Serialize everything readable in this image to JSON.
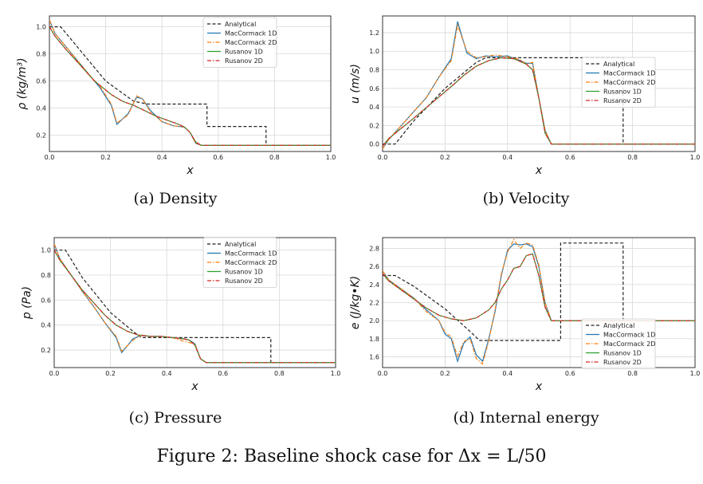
{
  "figure_caption": "Figure 2: Baseline shock case for Δx = L/50",
  "colors": {
    "analytical": "#222222",
    "maccormack_1d": "#1f77b4",
    "maccormack_2d": "#ff7f0e",
    "rusanov_1d": "#2ca02c",
    "rusanov_2d": "#d62728",
    "grid": "#d9d9d9"
  },
  "chart_data": [
    {
      "id": "density",
      "type": "line",
      "caption": "(a) Density",
      "xlabel": "x",
      "ylabel": "ρ (kg/m³)",
      "xlim": [
        0,
        1.0
      ],
      "ylim": [
        0.08,
        1.08
      ],
      "xticks": [
        "0.0",
        "0.2",
        "0.4",
        "0.6",
        "0.8",
        "1.0"
      ],
      "yticks": [
        "0.2",
        "0.4",
        "0.6",
        "0.8",
        "1.0"
      ],
      "xtick_values": [
        0,
        0.2,
        0.4,
        0.6,
        0.8,
        1.0
      ],
      "ytick_values": [
        0.2,
        0.4,
        0.6,
        0.8,
        1.0
      ],
      "grid": true,
      "legend_position": "top-right",
      "series": [
        {
          "name": "Analytical",
          "style": "dashed",
          "x": [
            0,
            0.04,
            0.1,
            0.2,
            0.3,
            0.35,
            0.56,
            0.56,
            0.77,
            0.77,
            1.0
          ],
          "y": [
            1.0,
            1.0,
            0.85,
            0.6,
            0.45,
            0.43,
            0.43,
            0.265,
            0.265,
            0.125,
            0.125
          ]
        },
        {
          "name": "MacCormack 1D",
          "style": "solid",
          "x": [
            0,
            0.02,
            0.06,
            0.1,
            0.14,
            0.18,
            0.22,
            0.24,
            0.28,
            0.31,
            0.33,
            0.36,
            0.4,
            0.44,
            0.48,
            0.5,
            0.52,
            0.54,
            0.6,
            1.0
          ],
          "y": [
            1.05,
            0.95,
            0.85,
            0.75,
            0.65,
            0.55,
            0.42,
            0.28,
            0.36,
            0.48,
            0.47,
            0.38,
            0.3,
            0.27,
            0.26,
            0.22,
            0.14,
            0.125,
            0.125,
            0.125
          ]
        },
        {
          "name": "MacCormack 2D",
          "style": "dashdot",
          "x": [
            0,
            0.02,
            0.06,
            0.1,
            0.14,
            0.18,
            0.22,
            0.24,
            0.28,
            0.31,
            0.33,
            0.36,
            0.4,
            0.44,
            0.48,
            0.5,
            0.52,
            0.54,
            0.6,
            1.0
          ],
          "y": [
            1.05,
            0.95,
            0.85,
            0.75,
            0.65,
            0.56,
            0.43,
            0.29,
            0.35,
            0.49,
            0.47,
            0.37,
            0.3,
            0.27,
            0.26,
            0.22,
            0.14,
            0.125,
            0.125,
            0.125
          ]
        },
        {
          "name": "Rusanov 1D",
          "style": "solid",
          "x": [
            0,
            0.02,
            0.06,
            0.1,
            0.16,
            0.22,
            0.26,
            0.3,
            0.34,
            0.38,
            0.42,
            0.46,
            0.48,
            0.5,
            0.52,
            0.54,
            0.6,
            1.0
          ],
          "y": [
            1.0,
            0.93,
            0.83,
            0.74,
            0.6,
            0.5,
            0.45,
            0.42,
            0.38,
            0.34,
            0.31,
            0.28,
            0.26,
            0.22,
            0.15,
            0.125,
            0.125,
            0.125
          ]
        },
        {
          "name": "Rusanov 2D",
          "style": "dashdot",
          "x": [
            0,
            0.02,
            0.06,
            0.1,
            0.16,
            0.22,
            0.26,
            0.3,
            0.34,
            0.38,
            0.42,
            0.46,
            0.48,
            0.5,
            0.52,
            0.54,
            0.6,
            1.0
          ],
          "y": [
            1.0,
            0.93,
            0.83,
            0.74,
            0.6,
            0.5,
            0.45,
            0.42,
            0.38,
            0.34,
            0.31,
            0.28,
            0.26,
            0.22,
            0.15,
            0.125,
            0.125,
            0.125
          ]
        }
      ]
    },
    {
      "id": "velocity",
      "type": "line",
      "caption": "(b) Velocity",
      "xlabel": "x",
      "ylabel": "u (m/s)",
      "xlim": [
        0,
        1.0
      ],
      "ylim": [
        -0.08,
        1.38
      ],
      "xticks": [
        "0.0",
        "0.2",
        "0.4",
        "0.6",
        "0.8",
        "1.0"
      ],
      "yticks": [
        "0.0",
        "0.2",
        "0.4",
        "0.6",
        "0.8",
        "1.0",
        "1.2"
      ],
      "xtick_values": [
        0,
        0.2,
        0.4,
        0.6,
        0.8,
        1.0
      ],
      "ytick_values": [
        0,
        0.2,
        0.4,
        0.6,
        0.8,
        1.0,
        1.2
      ],
      "grid": true,
      "legend_position": "center-right",
      "series": [
        {
          "name": "Analytical",
          "style": "dashed",
          "x": [
            0,
            0.04,
            0.1,
            0.2,
            0.3,
            0.33,
            0.77,
            0.77,
            1.0
          ],
          "y": [
            0,
            0,
            0.25,
            0.6,
            0.88,
            0.93,
            0.93,
            0,
            0
          ]
        },
        {
          "name": "MacCormack 1D",
          "style": "solid",
          "x": [
            0,
            0.02,
            0.06,
            0.1,
            0.14,
            0.18,
            0.22,
            0.24,
            0.27,
            0.3,
            0.33,
            0.36,
            0.4,
            0.44,
            0.46,
            0.48,
            0.5,
            0.52,
            0.54,
            0.6,
            1.0
          ],
          "y": [
            -0.05,
            0.05,
            0.2,
            0.35,
            0.5,
            0.72,
            0.92,
            1.32,
            0.98,
            0.92,
            0.95,
            0.94,
            0.95,
            0.9,
            0.87,
            0.87,
            0.5,
            0.15,
            0.0,
            0.0,
            0.0
          ]
        },
        {
          "name": "MacCormack 2D",
          "style": "dashdot",
          "x": [
            0,
            0.02,
            0.06,
            0.1,
            0.14,
            0.18,
            0.22,
            0.24,
            0.27,
            0.3,
            0.33,
            0.36,
            0.4,
            0.44,
            0.46,
            0.48,
            0.5,
            0.52,
            0.54,
            0.6,
            1.0
          ],
          "y": [
            -0.05,
            0.05,
            0.2,
            0.35,
            0.5,
            0.72,
            0.9,
            1.28,
            1.0,
            0.93,
            0.94,
            0.96,
            0.94,
            0.91,
            0.86,
            0.88,
            0.5,
            0.15,
            0.0,
            0.0,
            0.0
          ]
        },
        {
          "name": "Rusanov 1D",
          "style": "solid",
          "x": [
            0,
            0.02,
            0.06,
            0.1,
            0.16,
            0.22,
            0.26,
            0.3,
            0.34,
            0.38,
            0.42,
            0.46,
            0.48,
            0.5,
            0.52,
            0.54,
            0.6,
            1.0
          ],
          "y": [
            -0.02,
            0.06,
            0.17,
            0.28,
            0.45,
            0.62,
            0.74,
            0.84,
            0.9,
            0.93,
            0.92,
            0.86,
            0.8,
            0.5,
            0.12,
            0.0,
            0.0,
            0.0
          ]
        },
        {
          "name": "Rusanov 2D",
          "style": "dashdot",
          "x": [
            0,
            0.02,
            0.06,
            0.1,
            0.16,
            0.22,
            0.26,
            0.3,
            0.34,
            0.38,
            0.42,
            0.46,
            0.48,
            0.5,
            0.52,
            0.54,
            0.6,
            1.0
          ],
          "y": [
            -0.02,
            0.06,
            0.17,
            0.28,
            0.45,
            0.62,
            0.74,
            0.84,
            0.9,
            0.93,
            0.92,
            0.86,
            0.8,
            0.5,
            0.12,
            0.0,
            0.0,
            0.0
          ]
        }
      ]
    },
    {
      "id": "pressure",
      "type": "line",
      "caption": "(c) Pressure",
      "xlabel": "x",
      "ylabel": "p (Pa)",
      "xlim": [
        0,
        1.0
      ],
      "ylim": [
        0.06,
        1.1
      ],
      "xticks": [
        "0.0",
        "0.2",
        "0.4",
        "0.6",
        "0.8",
        "1.0"
      ],
      "yticks": [
        "0.2",
        "0.4",
        "0.6",
        "0.8",
        "1.0"
      ],
      "xtick_values": [
        0,
        0.2,
        0.4,
        0.6,
        0.8,
        1.0
      ],
      "ytick_values": [
        0.2,
        0.4,
        0.6,
        0.8,
        1.0
      ],
      "grid": true,
      "legend_position": "top-right",
      "series": [
        {
          "name": "Analytical",
          "style": "dashed",
          "x": [
            0,
            0.04,
            0.1,
            0.2,
            0.28,
            0.31,
            0.77,
            0.77,
            1.0
          ],
          "y": [
            1.0,
            1.0,
            0.78,
            0.5,
            0.35,
            0.3,
            0.3,
            0.1,
            0.1
          ]
        },
        {
          "name": "MacCormack 1D",
          "style": "solid",
          "x": [
            0,
            0.02,
            0.06,
            0.1,
            0.14,
            0.18,
            0.22,
            0.24,
            0.28,
            0.31,
            0.34,
            0.38,
            0.42,
            0.46,
            0.48,
            0.5,
            0.52,
            0.54,
            0.6,
            1.0
          ],
          "y": [
            1.05,
            0.93,
            0.8,
            0.67,
            0.55,
            0.42,
            0.3,
            0.18,
            0.29,
            0.32,
            0.31,
            0.31,
            0.3,
            0.29,
            0.28,
            0.25,
            0.13,
            0.1,
            0.1,
            0.1
          ]
        },
        {
          "name": "MacCormack 2D",
          "style": "dashdot",
          "x": [
            0,
            0.02,
            0.06,
            0.1,
            0.14,
            0.18,
            0.22,
            0.24,
            0.28,
            0.31,
            0.34,
            0.38,
            0.42,
            0.46,
            0.48,
            0.5,
            0.52,
            0.54,
            0.6,
            1.0
          ],
          "y": [
            1.05,
            0.93,
            0.8,
            0.67,
            0.55,
            0.42,
            0.31,
            0.19,
            0.28,
            0.32,
            0.31,
            0.31,
            0.3,
            0.27,
            0.26,
            0.25,
            0.13,
            0.1,
            0.1,
            0.1
          ]
        },
        {
          "name": "Rusanov 1D",
          "style": "solid",
          "x": [
            0,
            0.02,
            0.06,
            0.1,
            0.14,
            0.18,
            0.22,
            0.26,
            0.3,
            0.34,
            0.38,
            0.42,
            0.46,
            0.48,
            0.5,
            0.52,
            0.54,
            0.6,
            1.0
          ],
          "y": [
            1.0,
            0.92,
            0.8,
            0.68,
            0.58,
            0.48,
            0.4,
            0.35,
            0.32,
            0.31,
            0.31,
            0.3,
            0.29,
            0.28,
            0.24,
            0.13,
            0.1,
            0.1,
            0.1
          ]
        },
        {
          "name": "Rusanov 2D",
          "style": "dashdot",
          "x": [
            0,
            0.02,
            0.06,
            0.1,
            0.14,
            0.18,
            0.22,
            0.26,
            0.3,
            0.34,
            0.38,
            0.42,
            0.46,
            0.48,
            0.5,
            0.52,
            0.54,
            0.6,
            1.0
          ],
          "y": [
            1.0,
            0.92,
            0.8,
            0.68,
            0.58,
            0.48,
            0.4,
            0.35,
            0.32,
            0.31,
            0.31,
            0.3,
            0.29,
            0.28,
            0.24,
            0.13,
            0.1,
            0.1,
            0.1
          ]
        }
      ]
    },
    {
      "id": "internal-energy",
      "type": "line",
      "caption": "(d) Internal energy",
      "xlabel": "x",
      "ylabel": "e (J/kg•K)",
      "xlim": [
        0,
        1.0
      ],
      "ylim": [
        1.48,
        2.92
      ],
      "xticks": [
        "0.0",
        "0.2",
        "0.4",
        "0.6",
        "0.8",
        "1.0"
      ],
      "yticks": [
        "1.6",
        "1.8",
        "2.0",
        "2.2",
        "2.4",
        "2.6",
        "2.8"
      ],
      "xtick_values": [
        0,
        0.2,
        0.4,
        0.6,
        0.8,
        1.0
      ],
      "ytick_values": [
        1.6,
        1.8,
        2.0,
        2.2,
        2.4,
        2.6,
        2.8
      ],
      "grid": true,
      "legend_position": "bottom-right",
      "series": [
        {
          "name": "Analytical",
          "style": "dashed",
          "x": [
            0,
            0.04,
            0.1,
            0.2,
            0.28,
            0.31,
            0.56,
            0.56,
            0.57,
            0.57,
            0.77,
            0.77,
            1.0
          ],
          "y": [
            2.5,
            2.5,
            2.38,
            2.13,
            1.88,
            1.78,
            1.78,
            1.78,
            1.78,
            2.86,
            2.86,
            2.0,
            2.0
          ]
        },
        {
          "name": "MacCormack 1D",
          "style": "solid",
          "x": [
            0,
            0.02,
            0.06,
            0.1,
            0.14,
            0.18,
            0.2,
            0.22,
            0.24,
            0.26,
            0.28,
            0.3,
            0.32,
            0.34,
            0.36,
            0.38,
            0.4,
            0.42,
            0.44,
            0.46,
            0.48,
            0.5,
            0.52,
            0.54,
            0.6,
            1.0
          ],
          "y": [
            2.55,
            2.45,
            2.35,
            2.25,
            2.12,
            2.0,
            1.85,
            1.8,
            1.55,
            1.75,
            1.82,
            1.62,
            1.55,
            1.8,
            2.1,
            2.5,
            2.78,
            2.85,
            2.84,
            2.85,
            2.82,
            2.6,
            2.2,
            2.0,
            2.0,
            2.0
          ]
        },
        {
          "name": "MacCormack 2D",
          "style": "dashdot",
          "x": [
            0,
            0.02,
            0.06,
            0.1,
            0.14,
            0.18,
            0.2,
            0.22,
            0.24,
            0.26,
            0.28,
            0.3,
            0.32,
            0.34,
            0.36,
            0.38,
            0.4,
            0.42,
            0.44,
            0.46,
            0.48,
            0.5,
            0.52,
            0.54,
            0.6,
            1.0
          ],
          "y": [
            2.55,
            2.45,
            2.35,
            2.25,
            2.1,
            2.0,
            1.87,
            1.82,
            1.6,
            1.77,
            1.8,
            1.58,
            1.52,
            1.78,
            2.12,
            2.52,
            2.76,
            2.9,
            2.8,
            2.86,
            2.84,
            2.62,
            2.2,
            2.0,
            2.0,
            2.0
          ]
        },
        {
          "name": "Rusanov 1D",
          "style": "solid",
          "x": [
            0,
            0.02,
            0.06,
            0.1,
            0.14,
            0.18,
            0.22,
            0.26,
            0.3,
            0.34,
            0.36,
            0.38,
            0.4,
            0.42,
            0.44,
            0.46,
            0.48,
            0.5,
            0.52,
            0.54,
            0.6,
            1.0
          ],
          "y": [
            2.52,
            2.44,
            2.34,
            2.24,
            2.14,
            2.06,
            2.02,
            2.0,
            2.03,
            2.12,
            2.2,
            2.35,
            2.45,
            2.58,
            2.6,
            2.72,
            2.74,
            2.5,
            2.15,
            2.0,
            2.0,
            2.0
          ]
        },
        {
          "name": "Rusanov 2D",
          "style": "dashdot",
          "x": [
            0,
            0.02,
            0.06,
            0.1,
            0.14,
            0.18,
            0.22,
            0.26,
            0.3,
            0.34,
            0.36,
            0.38,
            0.4,
            0.42,
            0.44,
            0.46,
            0.48,
            0.5,
            0.52,
            0.54,
            0.6,
            1.0
          ],
          "y": [
            2.52,
            2.44,
            2.34,
            2.24,
            2.14,
            2.06,
            2.02,
            2.0,
            2.03,
            2.12,
            2.2,
            2.35,
            2.45,
            2.58,
            2.6,
            2.72,
            2.74,
            2.5,
            2.15,
            2.0,
            2.0,
            2.0
          ]
        }
      ]
    }
  ]
}
